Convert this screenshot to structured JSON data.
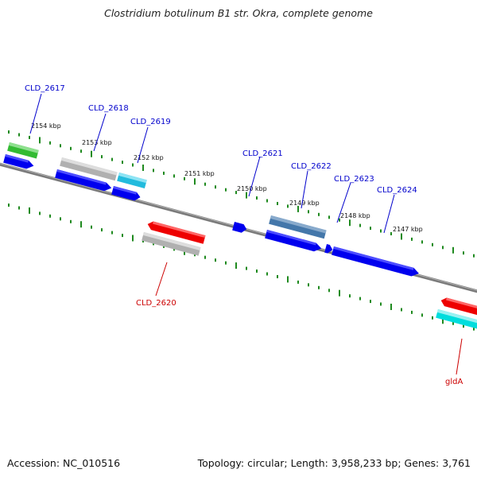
{
  "title": "Clostridium botulinum B1 str. Okra, complete genome",
  "footer": {
    "accession": "Accession: NC_010516",
    "summary": "Topology: circular; Length: 3,958,233 bp; Genes: 3,761"
  },
  "colors": {
    "backbone": "#808080",
    "tick": "#1f8a1f",
    "label_forward": "#0000cc",
    "label_reverse": "#cc0000",
    "gene_blue": "#0000ee",
    "gene_gray": "#bbbbbb",
    "gene_cyan": "#22bbdd",
    "gene_green": "#33bb33",
    "gene_steel": "#4477aa",
    "gene_red": "#ee0000",
    "gene_lightcyan": "#00dddd"
  },
  "kbp_labels": [
    "2154 kbp",
    "2153 kbp",
    "2152 kbp",
    "2151 kbp",
    "2150 kbp",
    "2149 kbp",
    "2148 kbp",
    "2147 kbp"
  ],
  "forward_gene_labels": [
    "CLD_2617",
    "CLD_2618",
    "CLD_2619",
    "CLD_2621",
    "CLD_2622",
    "CLD_2623",
    "CLD_2624"
  ],
  "reverse_gene_labels": [
    "CLD_2620",
    "gldA"
  ]
}
